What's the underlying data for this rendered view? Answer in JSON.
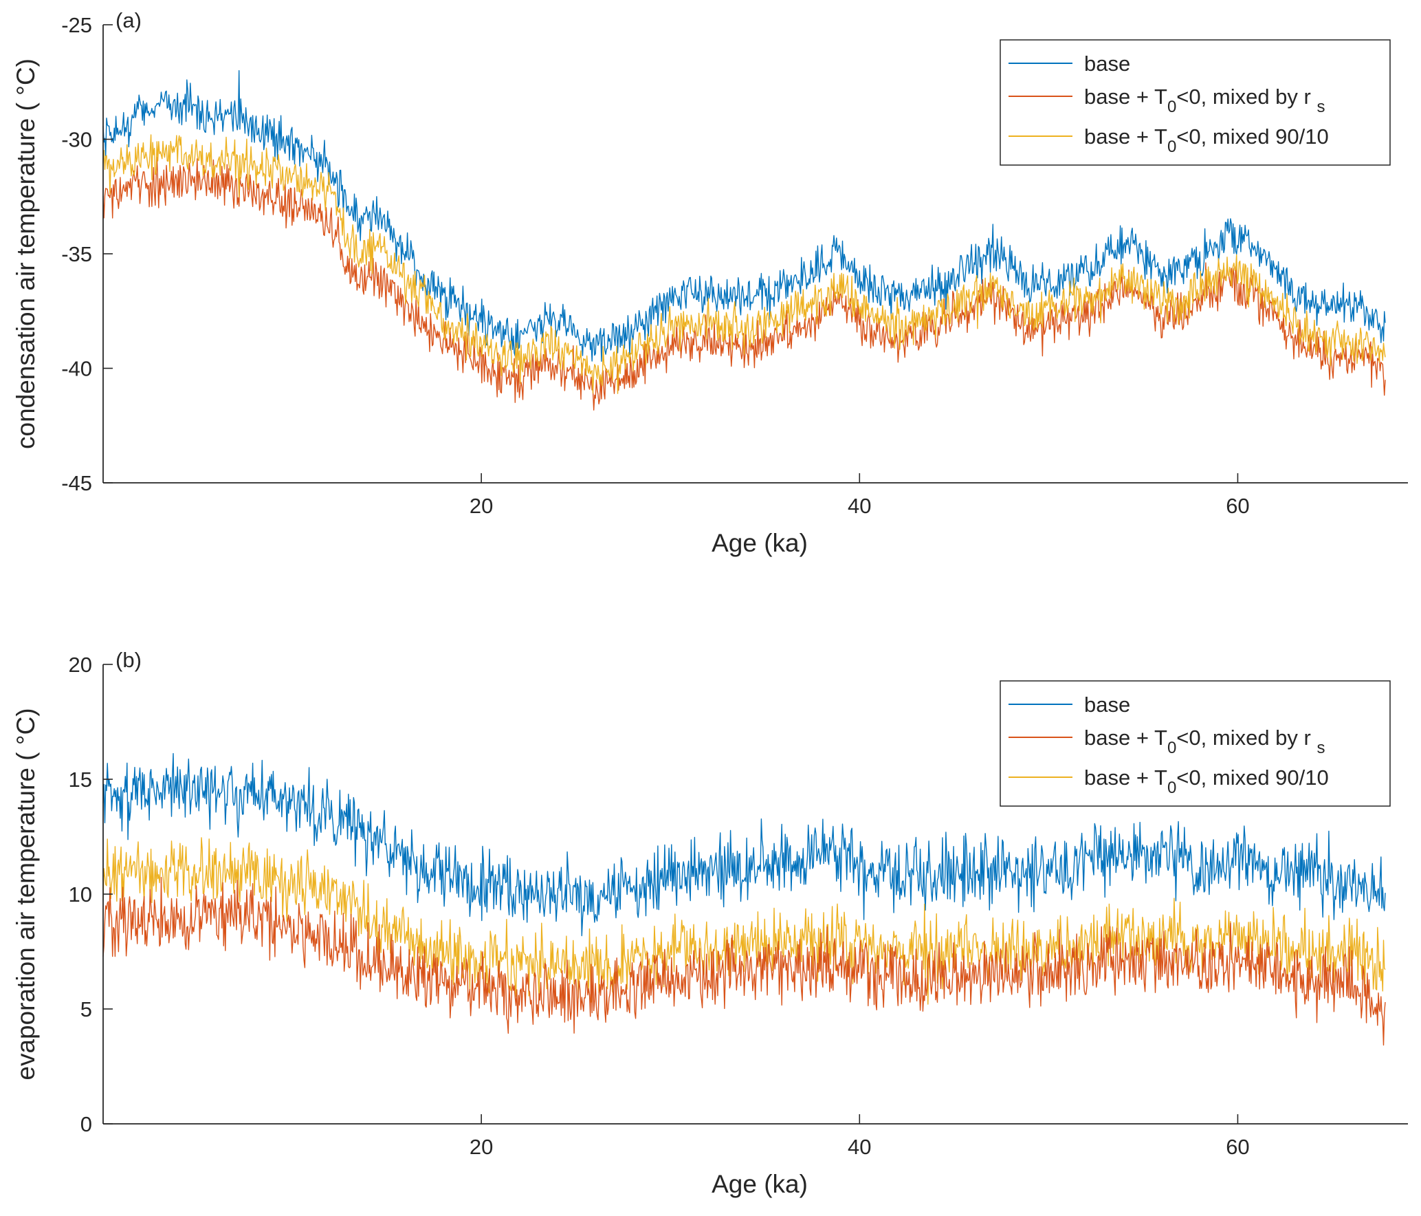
{
  "chart_data": [
    {
      "type": "line",
      "panel_label": "(a)",
      "xlabel": "Age (ka)",
      "ylabel": "condensation air temperature ( °C)",
      "xlim": [
        0,
        69
      ],
      "ylim": [
        -45,
        -25
      ],
      "xticks": [
        20,
        40,
        60
      ],
      "yticks": [
        -45,
        -40,
        -35,
        -30,
        -25
      ],
      "legend_position": "top-right",
      "noise": [
        1.6,
        1.6,
        1.6
      ],
      "series": [
        {
          "name": "base",
          "color": "#0072BD",
          "points": [
            [
              0,
              -30.2
            ],
            [
              2,
              -28.8
            ],
            [
              3,
              -28.4
            ],
            [
              5,
              -28.6
            ],
            [
              8,
              -29.4
            ],
            [
              10,
              -30.3
            ],
            [
              12,
              -31.2
            ],
            [
              12.8,
              -32.6
            ],
            [
              13.5,
              -33.6
            ],
            [
              14.5,
              -33.2
            ],
            [
              15,
              -33.8
            ],
            [
              16,
              -35.0
            ],
            [
              18,
              -37.0
            ],
            [
              20,
              -38.0
            ],
            [
              22,
              -38.8
            ],
            [
              23.5,
              -37.8
            ],
            [
              25,
              -38.4
            ],
            [
              26,
              -39.2
            ],
            [
              28,
              -38.4
            ],
            [
              30,
              -36.8
            ],
            [
              32,
              -36.6
            ],
            [
              34,
              -37.0
            ],
            [
              36,
              -36.4
            ],
            [
              38,
              -35.6
            ],
            [
              39,
              -35.0
            ],
            [
              40,
              -36.2
            ],
            [
              42,
              -37.0
            ],
            [
              44,
              -36.3
            ],
            [
              45,
              -36.2
            ],
            [
              46,
              -35.4
            ],
            [
              47,
              -34.8
            ],
            [
              48,
              -35.6
            ],
            [
              49,
              -36.4
            ],
            [
              50,
              -36.2
            ],
            [
              52,
              -35.6
            ],
            [
              54,
              -34.6
            ],
            [
              55,
              -35.0
            ],
            [
              56,
              -35.8
            ],
            [
              57,
              -35.6
            ],
            [
              58,
              -35.2
            ],
            [
              59,
              -34.6
            ],
            [
              59.6,
              -34.0
            ],
            [
              60.5,
              -34.6
            ],
            [
              62,
              -35.6
            ],
            [
              63,
              -36.8
            ],
            [
              65,
              -37.3
            ],
            [
              67,
              -37.6
            ],
            [
              67.8,
              -38.5
            ]
          ]
        },
        {
          "name": "base + T0<0, mixed by rs",
          "color": "#D95319",
          "points": [
            [
              0,
              -32.6
            ],
            [
              2,
              -32.0
            ],
            [
              4,
              -31.8
            ],
            [
              6,
              -32.0
            ],
            [
              8,
              -32.2
            ],
            [
              10,
              -32.8
            ],
            [
              12,
              -33.6
            ],
            [
              12.8,
              -35.4
            ],
            [
              13.5,
              -36.4
            ],
            [
              14.5,
              -35.8
            ],
            [
              15,
              -36.4
            ],
            [
              16,
              -37.4
            ],
            [
              18,
              -38.8
            ],
            [
              20,
              -39.8
            ],
            [
              22,
              -40.6
            ],
            [
              23.5,
              -39.8
            ],
            [
              25,
              -40.2
            ],
            [
              26,
              -41.0
            ],
            [
              28,
              -40.2
            ],
            [
              30,
              -39.0
            ],
            [
              32,
              -38.8
            ],
            [
              34,
              -39.2
            ],
            [
              36,
              -38.6
            ],
            [
              38,
              -37.8
            ],
            [
              39,
              -37.0
            ],
            [
              40,
              -38.0
            ],
            [
              42,
              -38.8
            ],
            [
              44,
              -38.2
            ],
            [
              46,
              -37.4
            ],
            [
              47,
              -36.8
            ],
            [
              48,
              -37.6
            ],
            [
              49,
              -38.4
            ],
            [
              50,
              -38.0
            ],
            [
              52,
              -37.6
            ],
            [
              54,
              -36.6
            ],
            [
              55,
              -37.0
            ],
            [
              56,
              -37.8
            ],
            [
              57,
              -37.6
            ],
            [
              58,
              -37.0
            ],
            [
              59,
              -36.6
            ],
            [
              59.6,
              -36.2
            ],
            [
              60.5,
              -36.8
            ],
            [
              62,
              -37.6
            ],
            [
              63,
              -38.8
            ],
            [
              65,
              -39.4
            ],
            [
              67,
              -39.6
            ],
            [
              67.8,
              -40.1
            ]
          ]
        },
        {
          "name": "base + T0<0, mixed 90/10",
          "color": "#EDB120",
          "points": [
            [
              0,
              -31.4
            ],
            [
              2,
              -30.8
            ],
            [
              3,
              -30.6
            ],
            [
              5,
              -30.8
            ],
            [
              8,
              -31.2
            ],
            [
              10,
              -31.6
            ],
            [
              12,
              -32.4
            ],
            [
              12.8,
              -34.2
            ],
            [
              13.5,
              -35.0
            ],
            [
              14.5,
              -34.4
            ],
            [
              15,
              -35.0
            ],
            [
              16,
              -36.2
            ],
            [
              18,
              -37.8
            ],
            [
              20,
              -39.0
            ],
            [
              22,
              -39.8
            ],
            [
              23.5,
              -39.0
            ],
            [
              25,
              -39.4
            ],
            [
              26,
              -40.2
            ],
            [
              28,
              -39.4
            ],
            [
              30,
              -38.2
            ],
            [
              32,
              -38.0
            ],
            [
              34,
              -38.4
            ],
            [
              36,
              -37.8
            ],
            [
              38,
              -37.0
            ],
            [
              39,
              -36.4
            ],
            [
              40,
              -37.4
            ],
            [
              42,
              -38.2
            ],
            [
              44,
              -37.6
            ],
            [
              46,
              -36.8
            ],
            [
              47,
              -36.2
            ],
            [
              48,
              -37.0
            ],
            [
              49,
              -37.8
            ],
            [
              50,
              -37.4
            ],
            [
              52,
              -37.0
            ],
            [
              54,
              -36.0
            ],
            [
              55,
              -36.4
            ],
            [
              56,
              -37.2
            ],
            [
              57,
              -37.0
            ],
            [
              58,
              -36.4
            ],
            [
              59,
              -36.0
            ],
            [
              59.6,
              -35.6
            ],
            [
              60.5,
              -36.2
            ],
            [
              62,
              -37.0
            ],
            [
              63,
              -38.2
            ],
            [
              65,
              -38.8
            ],
            [
              67,
              -39.0
            ],
            [
              67.8,
              -39.5
            ]
          ]
        }
      ]
    },
    {
      "type": "line",
      "panel_label": "(b)",
      "xlabel": "Age (ka)",
      "ylabel": "evaporation air temperature ( °C)",
      "xlim": [
        0,
        69
      ],
      "ylim": [
        0,
        20
      ],
      "xticks": [
        20,
        40,
        60
      ],
      "yticks": [
        0,
        5,
        10,
        15,
        20
      ],
      "legend_position": "top-right",
      "noise": [
        2.6,
        2.6,
        2.4
      ],
      "series": [
        {
          "name": "base",
          "color": "#0072BD",
          "points": [
            [
              0,
              14.4
            ],
            [
              2,
              14.4
            ],
            [
              4,
              14.6
            ],
            [
              6,
              14.6
            ],
            [
              8,
              14.4
            ],
            [
              10,
              14.0
            ],
            [
              12,
              13.6
            ],
            [
              14,
              12.6
            ],
            [
              16,
              11.6
            ],
            [
              18,
              10.8
            ],
            [
              20,
              10.4
            ],
            [
              22,
              10.4
            ],
            [
              24,
              10.2
            ],
            [
              26,
              9.8
            ],
            [
              28,
              10.4
            ],
            [
              30,
              10.8
            ],
            [
              32,
              11.0
            ],
            [
              34,
              11.0
            ],
            [
              36,
              11.4
            ],
            [
              38,
              11.6
            ],
            [
              40,
              11.4
            ],
            [
              42,
              10.6
            ],
            [
              44,
              10.8
            ],
            [
              46,
              11.0
            ],
            [
              48,
              11.2
            ],
            [
              50,
              11.0
            ],
            [
              52,
              11.4
            ],
            [
              54,
              11.6
            ],
            [
              56,
              11.6
            ],
            [
              58,
              11.2
            ],
            [
              60,
              11.6
            ],
            [
              62,
              11.4
            ],
            [
              64,
              10.8
            ],
            [
              66,
              10.6
            ],
            [
              67.8,
              10.0
            ]
          ]
        },
        {
          "name": "base + T0<0, mixed by rs",
          "color": "#D95319",
          "points": [
            [
              0,
              8.8
            ],
            [
              2,
              9.0
            ],
            [
              4,
              9.0
            ],
            [
              6,
              9.0
            ],
            [
              8,
              9.0
            ],
            [
              10,
              8.6
            ],
            [
              12,
              8.0
            ],
            [
              14,
              7.2
            ],
            [
              16,
              6.6
            ],
            [
              18,
              6.0
            ],
            [
              20,
              6.0
            ],
            [
              22,
              5.8
            ],
            [
              24,
              5.6
            ],
            [
              26,
              5.6
            ],
            [
              28,
              6.0
            ],
            [
              30,
              6.4
            ],
            [
              32,
              6.6
            ],
            [
              34,
              6.8
            ],
            [
              36,
              6.8
            ],
            [
              38,
              7.0
            ],
            [
              40,
              6.8
            ],
            [
              42,
              6.4
            ],
            [
              44,
              6.4
            ],
            [
              46,
              6.6
            ],
            [
              48,
              6.6
            ],
            [
              50,
              6.6
            ],
            [
              52,
              6.8
            ],
            [
              54,
              7.0
            ],
            [
              56,
              7.0
            ],
            [
              58,
              6.8
            ],
            [
              60,
              7.2
            ],
            [
              62,
              6.6
            ],
            [
              64,
              6.0
            ],
            [
              66,
              6.0
            ],
            [
              67.8,
              5.2
            ]
          ]
        },
        {
          "name": "base + T0<0, mixed 90/10",
          "color": "#EDB120",
          "points": [
            [
              0,
              10.8
            ],
            [
              2,
              11.0
            ],
            [
              4,
              11.0
            ],
            [
              6,
              11.0
            ],
            [
              8,
              11.0
            ],
            [
              10,
              10.6
            ],
            [
              12,
              10.0
            ],
            [
              14,
              9.0
            ],
            [
              16,
              8.0
            ],
            [
              18,
              7.4
            ],
            [
              20,
              7.2
            ],
            [
              22,
              7.0
            ],
            [
              24,
              6.8
            ],
            [
              26,
              6.8
            ],
            [
              28,
              7.2
            ],
            [
              30,
              7.4
            ],
            [
              32,
              7.6
            ],
            [
              34,
              7.8
            ],
            [
              36,
              7.8
            ],
            [
              38,
              8.0
            ],
            [
              40,
              7.8
            ],
            [
              42,
              7.4
            ],
            [
              44,
              7.4
            ],
            [
              46,
              7.6
            ],
            [
              48,
              7.6
            ],
            [
              50,
              7.6
            ],
            [
              52,
              7.8
            ],
            [
              54,
              8.0
            ],
            [
              56,
              8.0
            ],
            [
              58,
              7.8
            ],
            [
              60,
              8.2
            ],
            [
              62,
              7.8
            ],
            [
              64,
              7.4
            ],
            [
              66,
              7.4
            ],
            [
              67.8,
              7.0
            ]
          ]
        }
      ]
    }
  ]
}
